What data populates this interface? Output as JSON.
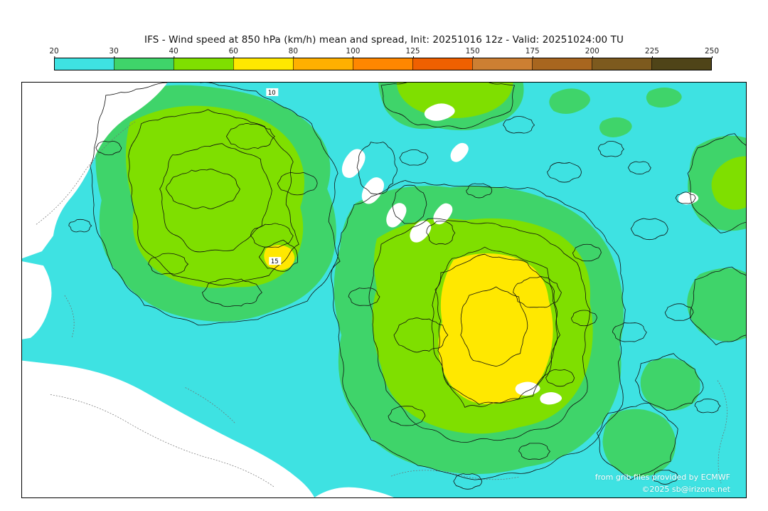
{
  "title": "IFS - Wind speed at 850 hPa (km/h) mean and spread, Init: 20251016 12z - Valid: 20251024:00 TU",
  "colorbar": {
    "ticks": [
      "20",
      "30",
      "40",
      "60",
      "80",
      "100",
      "125",
      "150",
      "175",
      "200",
      "225",
      "250"
    ],
    "colors": [
      "#3ee2e2",
      "#3fd46a",
      "#7fdf00",
      "#ffe800",
      "#ffb000",
      "#ff8700",
      "#ef6000",
      "#cd7f32",
      "#a8661f",
      "#7d5a1e",
      "#4f4418"
    ]
  },
  "map": {
    "colors": {
      "background": "#ffffff",
      "spread_low": "#3ee2e2",
      "spread_mid": "#3fd46a",
      "spread_high": "#7fdf00",
      "spread_very_high": "#ffe800",
      "contour": "#101010",
      "coastline": "#6f6f6f"
    },
    "contour_labels": [
      "10",
      "15"
    ],
    "credits": {
      "line1": "from grib files provided by ECMWF",
      "line2": "©2025 sb@irizone.net"
    }
  }
}
